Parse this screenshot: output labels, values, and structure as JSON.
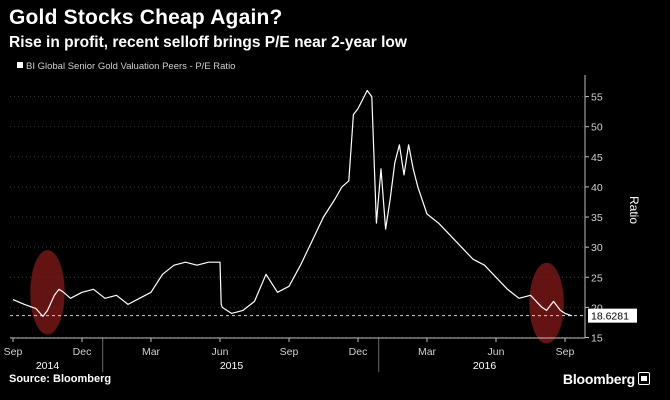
{
  "header": {
    "title": "Gold Stocks Cheap Again?",
    "subtitle": "Rise in profit, recent selloff brings P/E near 2-year low"
  },
  "footer": {
    "source": "Source: Bloomberg",
    "brand": "Bloomberg"
  },
  "colors": {
    "background": "#000000",
    "line": "#ffffff",
    "highlight": "#8b1a1a",
    "grid": "#3a3a3a"
  },
  "chart_data": {
    "type": "line",
    "title": "Gold Stocks Cheap Again?",
    "subtitle": "Rise in profit, recent selloff brings P/E near 2-year low",
    "legend": "BI Global Senior Gold Valuation Peers - P/E Ratio",
    "ylabel": "Ratio",
    "ylim": [
      15,
      58
    ],
    "yticks": [
      15,
      20,
      25,
      30,
      35,
      40,
      45,
      50,
      55
    ],
    "grid": "horizontal dotted",
    "x_range": [
      0,
      24.8
    ],
    "x_units": "months since Sep 2014",
    "month_ticks": [
      {
        "label": "Sep",
        "x": 0
      },
      {
        "label": "Dec",
        "x": 3
      },
      {
        "label": "Mar",
        "x": 6
      },
      {
        "label": "Jun",
        "x": 9
      },
      {
        "label": "Sep",
        "x": 12
      },
      {
        "label": "Dec",
        "x": 15
      },
      {
        "label": "Mar",
        "x": 18
      },
      {
        "label": "Jun",
        "x": 21
      },
      {
        "label": "Sep",
        "x": 24
      }
    ],
    "year_labels": [
      {
        "label": "2014",
        "x": 1.5
      },
      {
        "label": "2015",
        "x": 9.5
      },
      {
        "label": "2016",
        "x": 20.5
      }
    ],
    "year_separators": [
      3.9,
      15.9
    ],
    "last_value": 18.6281,
    "last_value_label": "18.6281",
    "highlights": [
      {
        "x": 1.5,
        "y": 22.5,
        "rx": 0.75,
        "ry": 7
      },
      {
        "x": 23.2,
        "y": 20.7,
        "rx": 0.75,
        "ry": 6.7
      }
    ],
    "series": [
      {
        "name": "BI Global Senior Gold Valuation Peers - P/E Ratio",
        "x": [
          0,
          0.5,
          1.0,
          1.3,
          1.5,
          1.8,
          2.0,
          2.2,
          2.5,
          3.0,
          3.5,
          4.0,
          4.5,
          5.0,
          5.5,
          6.0,
          6.5,
          7.0,
          7.5,
          8.0,
          8.5,
          9.0,
          9.05,
          9.1,
          9.5,
          10.0,
          10.5,
          11.0,
          11.5,
          12.0,
          12.5,
          13.0,
          13.5,
          14.0,
          14.3,
          14.6,
          14.8,
          15.0,
          15.2,
          15.4,
          15.6,
          15.8,
          16.0,
          16.2,
          16.4,
          16.6,
          16.8,
          17.0,
          17.2,
          17.4,
          17.6,
          18.0,
          18.5,
          19.0,
          19.5,
          20.0,
          20.5,
          21.0,
          21.5,
          22.0,
          22.5,
          23.0,
          23.2,
          23.5,
          23.8,
          24.0,
          24.3
        ],
        "values": [
          21.3,
          20.5,
          19.8,
          18.5,
          19.5,
          22.0,
          23.0,
          22.5,
          21.5,
          22.5,
          23.0,
          21.5,
          22.0,
          20.5,
          21.5,
          22.5,
          25.5,
          27.0,
          27.5,
          27.0,
          27.5,
          27.5,
          20.5,
          20.0,
          19.0,
          19.5,
          21.0,
          25.5,
          22.5,
          23.5,
          27.0,
          31.0,
          35.0,
          38.0,
          40.0,
          41.0,
          52.0,
          53.0,
          54.5,
          56.0,
          55.0,
          34.0,
          43.0,
          33.0,
          38.0,
          44.0,
          47.0,
          42.0,
          47.0,
          43.0,
          40.0,
          35.5,
          34.0,
          32.0,
          30.0,
          28.0,
          27.0,
          25.0,
          23.0,
          21.5,
          22.0,
          20.0,
          19.5,
          21.0,
          19.5,
          19.0,
          18.6
        ]
      }
    ]
  }
}
